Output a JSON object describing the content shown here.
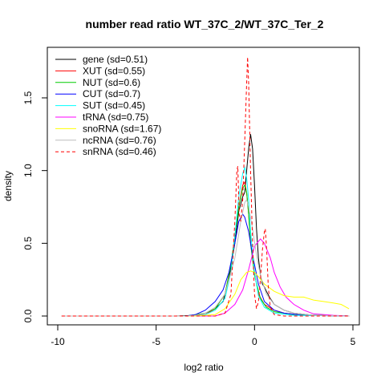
{
  "chart_data": {
    "type": "line",
    "title": "number read ratio WT_37C_2/WT_37C_Ter_2",
    "xlabel": "log2 ratio",
    "ylabel": "density",
    "xlim": [
      -10,
      5
    ],
    "ylim": [
      0,
      1.85
    ],
    "xticks": [
      -10,
      -5,
      0,
      5
    ],
    "xtick_labels": [
      "-10",
      "-5",
      "0",
      "5"
    ],
    "yticks": [
      0,
      0.5,
      1.0,
      1.5
    ],
    "ytick_labels": [
      "0.0",
      "0.5",
      "1.0",
      "1.5"
    ],
    "grid": false,
    "legend_position": "top-left",
    "series": [
      {
        "name": "gene (sd=0.51)",
        "color": "#000000",
        "dash": "solid",
        "points": [
          [
            -9.8,
            0
          ],
          [
            -4,
            0
          ],
          [
            -3,
            0.005
          ],
          [
            -2.5,
            0.02
          ],
          [
            -2,
            0.05
          ],
          [
            -1.6,
            0.1
          ],
          [
            -1.3,
            0.25
          ],
          [
            -1.0,
            0.5
          ],
          [
            -0.8,
            0.72
          ],
          [
            -0.6,
            0.82
          ],
          [
            -0.5,
            0.85
          ],
          [
            -0.4,
            1.0
          ],
          [
            -0.3,
            1.15
          ],
          [
            -0.2,
            1.25
          ],
          [
            -0.1,
            1.15
          ],
          [
            0,
            0.9
          ],
          [
            0.1,
            0.6
          ],
          [
            0.2,
            0.4
          ],
          [
            0.3,
            0.28
          ],
          [
            0.4,
            0.22
          ],
          [
            0.5,
            0.2
          ],
          [
            0.6,
            0.17
          ],
          [
            0.8,
            0.12
          ],
          [
            1.0,
            0.08
          ],
          [
            1.5,
            0.04
          ],
          [
            2,
            0.02
          ],
          [
            3,
            0.005
          ],
          [
            4.8,
            0
          ]
        ]
      },
      {
        "name": "XUT (sd=0.55)",
        "color": "#ff0000",
        "dash": "solid",
        "points": [
          [
            -9.8,
            0
          ],
          [
            -3.5,
            0
          ],
          [
            -2.5,
            0.01
          ],
          [
            -2,
            0.05
          ],
          [
            -1.5,
            0.15
          ],
          [
            -1.2,
            0.35
          ],
          [
            -1.0,
            0.55
          ],
          [
            -0.8,
            0.75
          ],
          [
            -0.6,
            0.9
          ],
          [
            -0.5,
            0.92
          ],
          [
            -0.4,
            0.85
          ],
          [
            -0.3,
            0.7
          ],
          [
            -0.2,
            0.5
          ],
          [
            0,
            0.3
          ],
          [
            0.2,
            0.15
          ],
          [
            0.5,
            0.08
          ],
          [
            1,
            0.04
          ],
          [
            1.5,
            0.02
          ],
          [
            2.5,
            0.005
          ],
          [
            4.8,
            0
          ]
        ]
      },
      {
        "name": "NUT (sd=0.6)",
        "color": "#00cc00",
        "dash": "solid",
        "points": [
          [
            -9.8,
            0
          ],
          [
            -3.5,
            0
          ],
          [
            -2.5,
            0.02
          ],
          [
            -2,
            0.05
          ],
          [
            -1.5,
            0.15
          ],
          [
            -1.2,
            0.35
          ],
          [
            -1.0,
            0.55
          ],
          [
            -0.8,
            0.75
          ],
          [
            -0.6,
            0.88
          ],
          [
            -0.5,
            0.9
          ],
          [
            -0.4,
            0.85
          ],
          [
            -0.3,
            0.7
          ],
          [
            -0.2,
            0.5
          ],
          [
            0,
            0.28
          ],
          [
            0.3,
            0.12
          ],
          [
            0.6,
            0.06
          ],
          [
            1,
            0.03
          ],
          [
            2,
            0.01
          ],
          [
            4.8,
            0
          ]
        ]
      },
      {
        "name": "CUT (sd=0.7)",
        "color": "#0000ff",
        "dash": "solid",
        "points": [
          [
            -9.8,
            0
          ],
          [
            -3.5,
            0
          ],
          [
            -3,
            0.01
          ],
          [
            -2.5,
            0.04
          ],
          [
            -2,
            0.1
          ],
          [
            -1.6,
            0.18
          ],
          [
            -1.3,
            0.3
          ],
          [
            -1.0,
            0.5
          ],
          [
            -0.8,
            0.65
          ],
          [
            -0.6,
            0.7
          ],
          [
            -0.5,
            0.68
          ],
          [
            -0.3,
            0.58
          ],
          [
            -0.1,
            0.42
          ],
          [
            0.2,
            0.22
          ],
          [
            0.5,
            0.1
          ],
          [
            1,
            0.04
          ],
          [
            1.5,
            0.02
          ],
          [
            2.5,
            0.005
          ],
          [
            4.8,
            0
          ]
        ]
      },
      {
        "name": "SUT (sd=0.45)",
        "color": "#00ffff",
        "dash": "solid",
        "points": [
          [
            -9.8,
            0
          ],
          [
            -3,
            0
          ],
          [
            -2.5,
            0.01
          ],
          [
            -2,
            0.04
          ],
          [
            -1.5,
            0.12
          ],
          [
            -1.2,
            0.3
          ],
          [
            -1.0,
            0.55
          ],
          [
            -0.8,
            0.82
          ],
          [
            -0.6,
            0.98
          ],
          [
            -0.5,
            1.02
          ],
          [
            -0.4,
            0.95
          ],
          [
            -0.3,
            0.8
          ],
          [
            -0.2,
            0.58
          ],
          [
            0,
            0.3
          ],
          [
            0.2,
            0.14
          ],
          [
            0.5,
            0.06
          ],
          [
            1,
            0.02
          ],
          [
            2,
            0.005
          ],
          [
            4.8,
            0
          ]
        ]
      },
      {
        "name": "tRNA (sd=0.75)",
        "color": "#ff00ff",
        "dash": "solid",
        "points": [
          [
            -9.8,
            0
          ],
          [
            -2,
            0
          ],
          [
            -1.5,
            0.02
          ],
          [
            -1.0,
            0.08
          ],
          [
            -0.6,
            0.18
          ],
          [
            -0.3,
            0.32
          ],
          [
            0,
            0.48
          ],
          [
            0.3,
            0.53
          ],
          [
            0.5,
            0.5
          ],
          [
            0.8,
            0.4
          ],
          [
            1.0,
            0.3
          ],
          [
            1.3,
            0.2
          ],
          [
            1.6,
            0.13
          ],
          [
            2.0,
            0.08
          ],
          [
            2.5,
            0.04
          ],
          [
            3,
            0.015
          ],
          [
            4,
            0.005
          ],
          [
            4.8,
            0
          ]
        ]
      },
      {
        "name": "snoRNA (sd=1.67)",
        "color": "#ffff00",
        "dash": "solid",
        "points": [
          [
            -9.8,
            0
          ],
          [
            -3,
            0
          ],
          [
            -2,
            0.01
          ],
          [
            -1.5,
            0.05
          ],
          [
            -1.0,
            0.15
          ],
          [
            -0.7,
            0.25
          ],
          [
            -0.4,
            0.3
          ],
          [
            -0.2,
            0.31
          ],
          [
            0,
            0.3
          ],
          [
            0.2,
            0.27
          ],
          [
            0.5,
            0.22
          ],
          [
            1.0,
            0.17
          ],
          [
            1.5,
            0.14
          ],
          [
            2.0,
            0.13
          ],
          [
            2.5,
            0.13
          ],
          [
            3.0,
            0.11
          ],
          [
            3.5,
            0.1
          ],
          [
            4.0,
            0.09
          ],
          [
            4.4,
            0.08
          ],
          [
            4.8,
            0.05
          ]
        ]
      },
      {
        "name": "ncRNA (sd=0.76)",
        "color": "#bebebe",
        "dash": "solid",
        "points": [
          [
            -9.8,
            0
          ],
          [
            -3.5,
            0
          ],
          [
            -3,
            0.005
          ],
          [
            -2.5,
            0.02
          ],
          [
            -2,
            0.06
          ],
          [
            -1.5,
            0.15
          ],
          [
            -1.0,
            0.4
          ],
          [
            -0.7,
            0.65
          ],
          [
            -0.5,
            0.78
          ],
          [
            -0.4,
            0.8
          ],
          [
            -0.3,
            0.75
          ],
          [
            -0.1,
            0.6
          ],
          [
            0.1,
            0.42
          ],
          [
            0.3,
            0.28
          ],
          [
            0.6,
            0.15
          ],
          [
            1,
            0.08
          ],
          [
            1.5,
            0.04
          ],
          [
            2,
            0.02
          ],
          [
            3,
            0.005
          ],
          [
            4.8,
            0
          ]
        ]
      },
      {
        "name": "snRNA (sd=0.46)",
        "color": "#ff0000",
        "dash": "dashed",
        "points": [
          [
            -9.8,
            0
          ],
          [
            -2,
            0
          ],
          [
            -1.5,
            0.02
          ],
          [
            -1.2,
            0.15
          ],
          [
            -1.0,
            0.65
          ],
          [
            -0.9,
            1.0
          ],
          [
            -0.85,
            1.03
          ],
          [
            -0.78,
            0.7
          ],
          [
            -0.7,
            0.65
          ],
          [
            -0.6,
            0.8
          ],
          [
            -0.5,
            1.2
          ],
          [
            -0.4,
            1.6
          ],
          [
            -0.35,
            1.78
          ],
          [
            -0.3,
            1.6
          ],
          [
            -0.2,
            1.0
          ],
          [
            -0.1,
            0.5
          ],
          [
            0,
            0.15
          ],
          [
            0.1,
            0.05
          ],
          [
            0.2,
            0.1
          ],
          [
            0.3,
            0.25
          ],
          [
            0.4,
            0.45
          ],
          [
            0.5,
            0.58
          ],
          [
            0.55,
            0.6
          ],
          [
            0.62,
            0.45
          ],
          [
            0.7,
            0.2
          ],
          [
            0.8,
            0.06
          ],
          [
            1.0,
            0.01
          ],
          [
            1.5,
            0
          ],
          [
            4.8,
            0
          ]
        ]
      }
    ]
  }
}
